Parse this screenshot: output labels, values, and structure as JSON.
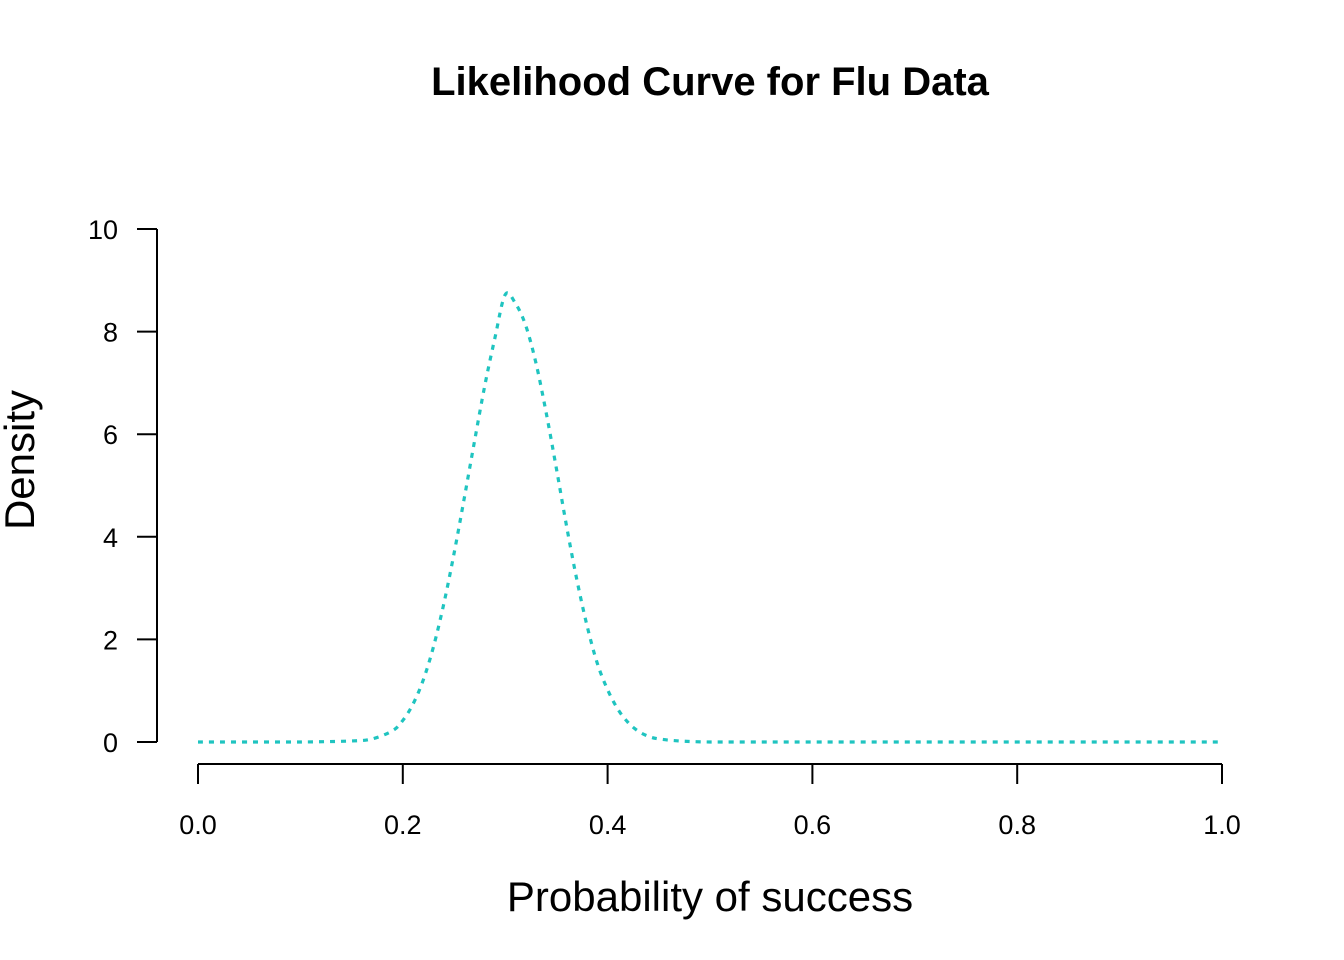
{
  "chart_data": {
    "type": "line",
    "title": "Likelihood Curve for Flu Data",
    "xlabel": "Probability of success",
    "ylabel": "Density",
    "xlim": [
      0,
      1
    ],
    "ylim": [
      0,
      10
    ],
    "x_ticks": [
      "0.0",
      "0.2",
      "0.4",
      "0.6",
      "0.8",
      "1.0"
    ],
    "y_ticks": [
      "0",
      "2",
      "4",
      "6",
      "8",
      "10"
    ],
    "grid": false,
    "legend": "none",
    "series": [
      {
        "line_style": "dotted",
        "color": "#1fc4c0",
        "x": [
          0.0,
          0.05,
          0.1,
          0.15,
          0.17,
          0.19,
          0.2,
          0.21,
          0.22,
          0.23,
          0.24,
          0.25,
          0.26,
          0.27,
          0.28,
          0.29,
          0.3,
          0.31,
          0.32,
          0.33,
          0.34,
          0.35,
          0.36,
          0.37,
          0.38,
          0.39,
          0.4,
          0.41,
          0.42,
          0.43,
          0.44,
          0.45,
          0.47,
          0.5,
          0.55,
          0.6,
          0.7,
          0.8,
          0.9,
          1.0
        ],
        "y": [
          0.0,
          0.0,
          0.0,
          0.02,
          0.06,
          0.22,
          0.42,
          0.74,
          1.21,
          1.86,
          2.69,
          3.67,
          4.75,
          5.86,
          6.94,
          7.88,
          8.72,
          8.55,
          8.12,
          7.39,
          6.42,
          5.33,
          4.2,
          3.16,
          2.26,
          1.53,
          1.02,
          0.64,
          0.38,
          0.21,
          0.11,
          0.06,
          0.02,
          0.0,
          0.0,
          0.0,
          0.0,
          0.0,
          0.0,
          0.0
        ]
      }
    ]
  }
}
